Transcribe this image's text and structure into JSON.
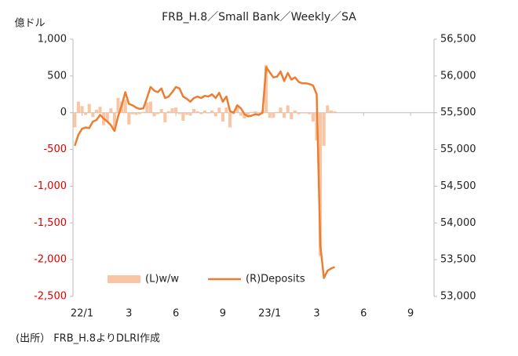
{
  "chart_data": {
    "type": "bar_line",
    "title": "FRB_H.8／Small Bank／Weekly／SA",
    "y_unit": "億ドル",
    "source": "(出所） FRB_H.8よりDLRI作成",
    "categories": [
      null,
      null,
      "22/1",
      null,
      null,
      null,
      null,
      null,
      null,
      null,
      null,
      null,
      null,
      null,
      null,
      "3",
      null,
      null,
      null,
      null,
      null,
      null,
      null,
      null,
      null,
      null,
      null,
      null,
      "6",
      null,
      null,
      null,
      null,
      null,
      null,
      null,
      null,
      null,
      null,
      null,
      null,
      "9",
      null,
      null,
      null,
      null,
      null,
      null,
      null,
      null,
      null,
      null,
      null,
      null,
      "23/1",
      null,
      null,
      null,
      null,
      null,
      null,
      null,
      null,
      null,
      null,
      null,
      null,
      "3",
      null,
      null,
      null,
      null,
      null,
      null,
      null,
      null,
      null,
      null,
      null,
      null,
      "6",
      null,
      null,
      null,
      null,
      null,
      null,
      null,
      null,
      null,
      null,
      null,
      null,
      "9",
      null,
      null,
      null,
      null,
      null,
      null
    ],
    "series": [
      {
        "name": "(L)w/w",
        "type": "bar",
        "axis": "y",
        "color": "#f8c6a4",
        "values": [
          -200,
          150,
          90,
          -30,
          120,
          -60,
          40,
          80,
          -170,
          -120,
          60,
          -210,
          200,
          150,
          180,
          -160,
          -20,
          -30,
          -20,
          10,
          140,
          150,
          -50,
          -20,
          50,
          -130,
          20,
          60,
          70,
          -20,
          -110,
          -30,
          -40,
          50,
          20,
          -20,
          30,
          -10,
          30,
          -50,
          70,
          -120,
          70,
          -200,
          -20,
          100,
          -40,
          -80,
          -30,
          10,
          20,
          -10,
          30,
          650,
          -70,
          -70,
          10,
          70,
          -70,
          100,
          -90,
          30,
          -20,
          -10,
          -10,
          -20,
          -120,
          -380,
          -1950,
          -450,
          100,
          30,
          20,
          null,
          null,
          null,
          null,
          null,
          null,
          null,
          null,
          null,
          null,
          null,
          null,
          null,
          null,
          null,
          null,
          null,
          null,
          null,
          null,
          null,
          null,
          null,
          null,
          null,
          null,
          null
        ]
      },
      {
        "name": "(R)Deposits",
        "type": "line",
        "axis": "y2",
        "color": "#ed7d31",
        "values": [
          55050,
          55200,
          55280,
          55300,
          55290,
          55380,
          55400,
          55470,
          55420,
          55380,
          55330,
          55250,
          55450,
          55600,
          55780,
          55620,
          55600,
          55570,
          55550,
          55560,
          55700,
          55850,
          55800,
          55780,
          55830,
          55700,
          55720,
          55780,
          55850,
          55830,
          55720,
          55690,
          55650,
          55700,
          55720,
          55700,
          55730,
          55720,
          55750,
          55700,
          55770,
          55650,
          55720,
          55520,
          55500,
          55600,
          55560,
          55480,
          55450,
          55460,
          55480,
          55470,
          55500,
          56120,
          56050,
          55980,
          55990,
          56060,
          55930,
          56040,
          55950,
          55980,
          55920,
          55900,
          55900,
          55890,
          55870,
          55750,
          53700,
          53250,
          53350,
          53380,
          53400,
          null,
          null,
          null,
          null,
          null,
          null,
          null,
          null,
          null,
          null,
          null,
          null,
          null,
          null,
          null,
          null,
          null,
          null,
          null,
          null,
          null,
          null,
          null,
          null,
          null,
          null,
          null
        ]
      }
    ],
    "ylim": [
      -2500,
      1000
    ],
    "yticks": [
      {
        "value": 1000,
        "label": "1,000"
      },
      500,
      0,
      -500,
      {
        "value": -1000,
        "label": "-1,000"
      },
      {
        "value": -1500,
        "label": "-1,500"
      },
      {
        "value": -2000,
        "label": "-2,000"
      },
      {
        "value": -2500,
        "label": "-2,500"
      }
    ],
    "y2lim": [
      53000,
      56500
    ],
    "y2ticks": [
      {
        "value": 56500,
        "label": "56,500"
      },
      {
        "value": 56000,
        "label": "56,000"
      },
      {
        "value": 55500,
        "label": "55,500"
      },
      {
        "value": 55000,
        "label": "55,000"
      },
      {
        "value": 54500,
        "label": "54,500"
      },
      {
        "value": 54000,
        "label": "54,000"
      },
      {
        "value": 53500,
        "label": "53,500"
      },
      {
        "value": 53000,
        "label": "53,000"
      }
    ],
    "negative_tick_color": "#e00000",
    "legend": "bottom"
  }
}
